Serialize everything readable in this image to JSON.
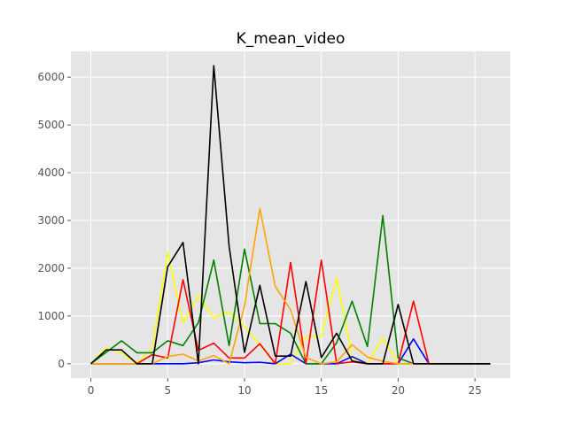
{
  "chart_data": {
    "type": "line",
    "title": "K_mean_video",
    "xlabel": "",
    "ylabel": "",
    "xlim": [
      -1.3,
      27.3
    ],
    "ylim": [
      -300,
      6540
    ],
    "xticks": [
      0,
      5,
      10,
      15,
      20,
      25
    ],
    "yticks": [
      0,
      1000,
      2000,
      3000,
      4000,
      5000,
      6000
    ],
    "grid": true,
    "x": [
      0,
      1,
      2,
      3,
      4,
      5,
      6,
      7,
      8,
      9,
      10,
      11,
      12,
      13,
      14,
      15,
      16,
      17,
      18,
      19,
      20,
      21,
      22,
      23,
      24,
      25,
      26
    ],
    "series": [
      {
        "color": "#ffff00",
        "values": [
          0,
          330,
          230,
          0,
          330,
          2330,
          850,
          1430,
          960,
          1090,
          780,
          400,
          0,
          0,
          570,
          570,
          1800,
          130,
          0,
          540,
          0,
          0,
          0,
          0,
          0,
          0,
          0
        ]
      },
      {
        "color": "#0000ff",
        "values": [
          0,
          0,
          0,
          0,
          0,
          0,
          0,
          20,
          80,
          40,
          20,
          30,
          0,
          200,
          0,
          0,
          0,
          150,
          0,
          0,
          0,
          520,
          0,
          0,
          0,
          0,
          0
        ]
      },
      {
        "color": "#008000",
        "values": [
          0,
          240,
          480,
          230,
          230,
          480,
          380,
          860,
          2170,
          380,
          2400,
          840,
          840,
          640,
          0,
          0,
          440,
          1310,
          360,
          3100,
          120,
          0,
          0,
          0,
          0,
          0,
          0
        ]
      },
      {
        "color": "#ff0000",
        "values": [
          0,
          0,
          0,
          0,
          190,
          120,
          1760,
          280,
          430,
          120,
          120,
          420,
          0,
          2120,
          0,
          2170,
          0,
          40,
          0,
          0,
          0,
          1310,
          0,
          0,
          0,
          0,
          0
        ]
      },
      {
        "color": "#ffa500",
        "values": [
          0,
          0,
          0,
          0,
          0,
          150,
          200,
          60,
          170,
          0,
          1210,
          3250,
          1620,
          1130,
          130,
          0,
          40,
          400,
          140,
          50,
          0,
          0,
          0,
          0,
          0,
          0,
          0
        ]
      },
      {
        "color": "#000000",
        "values": [
          0,
          290,
          290,
          0,
          0,
          2030,
          2540,
          0,
          6240,
          2460,
          240,
          1640,
          160,
          160,
          1720,
          130,
          640,
          60,
          0,
          0,
          1240,
          0,
          0,
          0,
          0,
          0,
          0
        ]
      }
    ]
  }
}
